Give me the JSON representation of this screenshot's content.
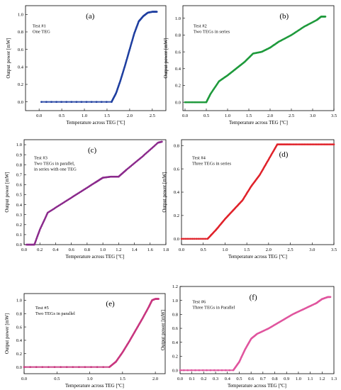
{
  "chart_data": [
    {
      "panel_label": "(a)",
      "type": "scatter",
      "annotation": [
        "Test #1",
        "One TEG"
      ],
      "xlabel": "Temperature across TEG [ºC]",
      "ylabel": "Output power [mW]",
      "xlim": [
        -0.3,
        2.8
      ],
      "ylim": [
        -0.1,
        1.1
      ],
      "xticks": [
        "0.0",
        "0.5",
        "1.0",
        "1.5",
        "2.0",
        "2.5"
      ],
      "xtick_values": [
        0,
        0.5,
        1.0,
        1.5,
        2.0,
        2.5
      ],
      "yticks": [
        "0.0",
        "0.2",
        "0.4",
        "0.6",
        "0.8",
        "1.0"
      ],
      "ytick_values": [
        0,
        0.2,
        0.4,
        0.6,
        0.8,
        1.0
      ],
      "color": "#1f3fa0",
      "series": [
        {
          "x": [
            0.05,
            1.6,
            1.7,
            1.8,
            1.9,
            2.0,
            2.1,
            2.2,
            2.3,
            2.4,
            2.5,
            2.6
          ],
          "y": [
            0.0,
            0.0,
            0.1,
            0.25,
            0.42,
            0.6,
            0.78,
            0.92,
            0.98,
            1.02,
            1.03,
            1.03
          ]
        }
      ]
    },
    {
      "panel_label": "(b)",
      "type": "scatter",
      "annotation": [
        "Test #2",
        "Two TEGs in series"
      ],
      "xlabel": "Temperature across TEG [ºC]",
      "ylabel": "Output power [mW]",
      "xlim": [
        -0.05,
        3.5
      ],
      "ylim": [
        -0.1,
        1.15
      ],
      "xticks": [
        "0.0",
        "0.5",
        "1.0",
        "1.5",
        "2.0",
        "2.5",
        "3.0",
        "3.5"
      ],
      "xtick_values": [
        0,
        0.5,
        1.0,
        1.5,
        2.0,
        2.5,
        3.0,
        3.5
      ],
      "yticks": [
        "0.0",
        "0.2",
        "0.4",
        "0.6",
        "0.8",
        "1.0"
      ],
      "ytick_values": [
        0,
        0.2,
        0.4,
        0.6,
        0.8,
        1.0
      ],
      "color": "#1f9a3c",
      "series": [
        {
          "x": [
            0.0,
            0.5,
            0.6,
            0.8,
            1.0,
            1.2,
            1.4,
            1.6,
            1.8,
            2.0,
            2.2,
            2.5,
            2.8,
            3.1,
            3.2,
            3.3
          ],
          "y": [
            0.0,
            0.0,
            0.1,
            0.25,
            0.32,
            0.4,
            0.48,
            0.58,
            0.6,
            0.65,
            0.72,
            0.8,
            0.9,
            0.98,
            1.02,
            1.02
          ]
        }
      ]
    },
    {
      "panel_label": "(c)",
      "type": "scatter",
      "annotation": [
        "Test #3",
        "Two TEGs in parallel,",
        "in series with one TEG"
      ],
      "xlabel": "Temperature across TEG [ºC]",
      "ylabel": "Output power [mW]",
      "xlim": [
        0,
        1.8
      ],
      "ylim": [
        0,
        1.05
      ],
      "xticks": [
        "0.0",
        "0.2",
        "0.4",
        "0.6",
        "0.8",
        "1.0",
        "1.2",
        "1.4",
        "1.6",
        "1.8"
      ],
      "xtick_values": [
        0,
        0.2,
        0.4,
        0.6,
        0.8,
        1.0,
        1.2,
        1.4,
        1.6,
        1.8
      ],
      "yticks": [
        "0.0",
        "0.1",
        "0.2",
        "0.3",
        "0.4",
        "0.5",
        "0.6",
        "0.7",
        "0.8",
        "0.9",
        "1.0"
      ],
      "ytick_values": [
        0,
        0.1,
        0.2,
        0.3,
        0.4,
        0.5,
        0.6,
        0.7,
        0.8,
        0.9,
        1.0
      ],
      "color": "#8b2a8c",
      "series": [
        {
          "x": [
            0.03,
            0.13,
            0.2,
            0.3,
            0.5,
            0.7,
            0.9,
            1.0,
            1.1,
            1.2,
            1.3,
            1.5,
            1.7,
            1.75
          ],
          "y": [
            0.0,
            0.0,
            0.15,
            0.32,
            0.42,
            0.52,
            0.62,
            0.67,
            0.68,
            0.68,
            0.75,
            0.88,
            1.02,
            1.03
          ]
        }
      ]
    },
    {
      "panel_label": "(d)",
      "type": "scatter",
      "annotation": [
        "Test #4",
        "Three TEGs in series"
      ],
      "xlabel": "Temperature across TEG [ºC]",
      "ylabel": "Output power [mW]",
      "xlim": [
        0,
        3.5
      ],
      "ylim": [
        -0.05,
        0.85
      ],
      "xticks": [
        "0.0",
        "0.5",
        "1.0",
        "1.5",
        "2.0",
        "2.5",
        "3.0",
        "3.5"
      ],
      "xtick_values": [
        0,
        0.5,
        1.0,
        1.5,
        2.0,
        2.5,
        3.0,
        3.5
      ],
      "yticks": [
        "0.0",
        "0.2",
        "0.4",
        "0.6",
        "0.8"
      ],
      "ytick_values": [
        0,
        0.2,
        0.4,
        0.6,
        0.8
      ],
      "color": "#e0222a",
      "series": [
        {
          "x": [
            0.0,
            0.6,
            0.8,
            1.0,
            1.2,
            1.4,
            1.6,
            1.8,
            2.0,
            2.2,
            2.5,
            3.0,
            3.5
          ],
          "y": [
            0.0,
            0.0,
            0.08,
            0.17,
            0.25,
            0.33,
            0.45,
            0.55,
            0.68,
            0.81,
            0.81,
            0.81,
            0.81
          ]
        }
      ]
    },
    {
      "panel_label": "(e)",
      "type": "scatter",
      "annotation": [
        "Test #5",
        "Two TEGs in parallel"
      ],
      "xlabel": "Temperature across TEG [ºC]",
      "ylabel": "Output power [mW]",
      "xlim": [
        0,
        2.15
      ],
      "ylim": [
        -0.1,
        1.1
      ],
      "xticks": [
        "0.0",
        "0.5",
        "1.0",
        "1.5",
        "2.0"
      ],
      "xtick_values": [
        0,
        0.5,
        1.0,
        1.5,
        2.0
      ],
      "yticks": [
        "0.0",
        "0.2",
        "0.4",
        "0.6",
        "0.8",
        "1.0"
      ],
      "ytick_values": [
        0,
        0.2,
        0.4,
        0.6,
        0.8,
        1.0
      ],
      "color": "#c8367f",
      "series": [
        {
          "x": [
            0.0,
            1.3,
            1.4,
            1.5,
            1.6,
            1.7,
            1.8,
            1.9,
            1.95,
            2.0,
            2.05
          ],
          "y": [
            0.0,
            0.0,
            0.08,
            0.22,
            0.38,
            0.55,
            0.72,
            0.9,
            1.0,
            1.02,
            1.02
          ]
        }
      ]
    },
    {
      "panel_label": "(f)",
      "type": "scatter",
      "annotation": [
        "Test #6",
        "Three TEGs in Parallel"
      ],
      "xlabel": "Temperature across TEG [ºC]",
      "ylabel": "Output power [mW]",
      "xlim": [
        0,
        1.3
      ],
      "ylim": [
        -0.05,
        1.2
      ],
      "xticks": [
        "0.0",
        "0.1",
        "0.2",
        "0.3",
        "0.4",
        "0.5",
        "0.6",
        "0.7",
        "0.8",
        "0.9",
        "1.0",
        "1.1",
        "1.2",
        "1.3"
      ],
      "xtick_values": [
        0,
        0.1,
        0.2,
        0.3,
        0.4,
        0.5,
        0.6,
        0.7,
        0.8,
        0.9,
        1.0,
        1.1,
        1.2,
        1.3
      ],
      "yticks": [
        "0.0",
        "0.2",
        "0.4",
        "0.6",
        "0.8",
        "1.0",
        "1.2"
      ],
      "ytick_values": [
        0,
        0.2,
        0.4,
        0.6,
        0.8,
        1.0,
        1.2
      ],
      "color": "#e0559e",
      "series": [
        {
          "x": [
            0.0,
            0.45,
            0.5,
            0.55,
            0.6,
            0.65,
            0.75,
            0.85,
            0.95,
            1.05,
            1.15,
            1.2,
            1.25,
            1.27
          ],
          "y": [
            0.0,
            0.0,
            0.12,
            0.3,
            0.45,
            0.52,
            0.6,
            0.7,
            0.8,
            0.88,
            0.96,
            1.02,
            1.05,
            1.05
          ]
        }
      ]
    }
  ]
}
